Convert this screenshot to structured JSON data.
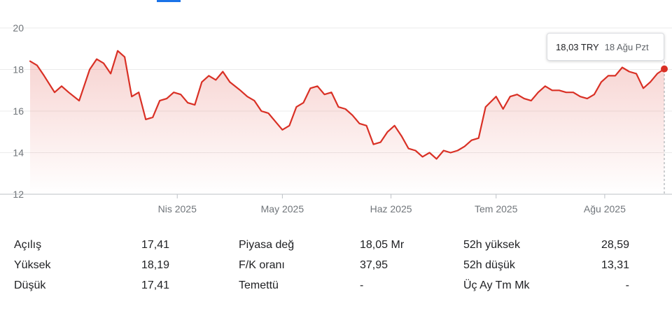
{
  "chart_data": {
    "type": "line",
    "title": "",
    "xlabel": "",
    "ylabel": "",
    "ylim": [
      12,
      20
    ],
    "yticks": [
      12,
      14,
      16,
      18,
      20
    ],
    "x_tick_labels": [
      "Nis 2025",
      "May 2025",
      "Haz 2025",
      "Tem 2025",
      "Ağu 2025"
    ],
    "x_tick_dates": [
      "2025-04-01",
      "2025-05-01",
      "2025-06-01",
      "2025-07-01",
      "2025-08-01"
    ],
    "x_range": [
      "2025-02-18",
      "2025-08-18"
    ],
    "grid": true,
    "line_color": "#d93025",
    "series": [
      {
        "x": [
          "2025-02-18",
          "2025-02-20",
          "2025-02-22",
          "2025-02-25",
          "2025-02-27",
          "2025-03-01",
          "2025-03-04",
          "2025-03-07",
          "2025-03-09",
          "2025-03-11",
          "2025-03-13",
          "2025-03-15",
          "2025-03-17",
          "2025-03-19",
          "2025-03-21",
          "2025-03-23",
          "2025-03-25",
          "2025-03-27",
          "2025-03-29",
          "2025-03-31",
          "2025-04-02",
          "2025-04-04",
          "2025-04-06",
          "2025-04-08",
          "2025-04-10",
          "2025-04-12",
          "2025-04-14",
          "2025-04-16",
          "2025-04-19",
          "2025-04-21",
          "2025-04-23",
          "2025-04-25",
          "2025-04-27",
          "2025-04-29",
          "2025-05-01",
          "2025-05-03",
          "2025-05-05",
          "2025-05-07",
          "2025-05-09",
          "2025-05-11",
          "2025-05-13",
          "2025-05-15",
          "2025-05-17",
          "2025-05-19",
          "2025-05-21",
          "2025-05-23",
          "2025-05-25",
          "2025-05-27",
          "2025-05-29",
          "2025-05-31",
          "2025-06-02",
          "2025-06-04",
          "2025-06-06",
          "2025-06-08",
          "2025-06-10",
          "2025-06-12",
          "2025-06-14",
          "2025-06-16",
          "2025-06-18",
          "2025-06-20",
          "2025-06-22",
          "2025-06-24",
          "2025-06-26",
          "2025-06-28",
          "2025-07-01",
          "2025-07-03",
          "2025-07-05",
          "2025-07-07",
          "2025-07-09",
          "2025-07-11",
          "2025-07-13",
          "2025-07-15",
          "2025-07-17",
          "2025-07-19",
          "2025-07-21",
          "2025-07-23",
          "2025-07-25",
          "2025-07-27",
          "2025-07-29",
          "2025-07-31",
          "2025-08-02",
          "2025-08-04",
          "2025-08-06",
          "2025-08-08",
          "2025-08-10",
          "2025-08-12",
          "2025-08-14",
          "2025-08-16",
          "2025-08-18"
        ],
        "y": [
          18.4,
          18.2,
          17.7,
          16.9,
          17.2,
          16.9,
          16.5,
          18.0,
          18.5,
          18.3,
          17.8,
          18.9,
          18.6,
          16.7,
          16.9,
          15.6,
          15.7,
          16.5,
          16.6,
          16.9,
          16.8,
          16.4,
          16.3,
          17.4,
          17.7,
          17.5,
          17.9,
          17.4,
          17.0,
          16.7,
          16.5,
          16.0,
          15.9,
          15.5,
          15.1,
          15.3,
          16.2,
          16.4,
          17.1,
          17.2,
          16.8,
          16.9,
          16.2,
          16.1,
          15.8,
          15.4,
          15.3,
          14.4,
          14.5,
          15.0,
          15.3,
          14.8,
          14.2,
          14.1,
          13.8,
          14.0,
          13.7,
          14.1,
          14.0,
          14.1,
          14.3,
          14.6,
          14.7,
          16.2,
          16.7,
          16.1,
          16.7,
          16.8,
          16.6,
          16.5,
          16.9,
          17.2,
          17.0,
          17.0,
          16.9,
          16.9,
          16.7,
          16.6,
          16.8,
          17.4,
          17.7,
          17.7,
          18.1,
          17.9,
          17.8,
          17.1,
          17.4,
          17.8,
          18.03
        ]
      }
    ],
    "tooltip": {
      "price": "18,03 TRY",
      "date": "18 Ağu Pzt"
    }
  },
  "stats": [
    [
      {
        "label": "Açılış",
        "value": "17,41"
      },
      {
        "label": "Piyasa değ",
        "value": "18,05 Mr"
      },
      {
        "label": "52h yüksek",
        "value": "28,59"
      }
    ],
    [
      {
        "label": "Yüksek",
        "value": "18,19"
      },
      {
        "label": "F/K oranı",
        "value": "37,95"
      },
      {
        "label": "52h düşük",
        "value": "13,31"
      }
    ],
    [
      {
        "label": "Düşük",
        "value": "17,41"
      },
      {
        "label": "Temettü",
        "value": "-"
      },
      {
        "label": "Üç Ay Tm Mk",
        "value": "-"
      }
    ]
  ]
}
